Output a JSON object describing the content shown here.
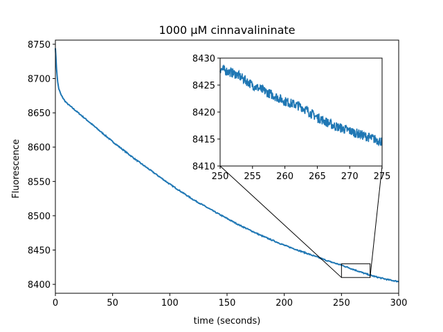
{
  "chart_data": {
    "type": "line",
    "title": "1000 μM cinnavalininate",
    "xlabel": "time (seconds)",
    "ylabel": "Fluorescence",
    "xlim": [
      0,
      300
    ],
    "ylim": [
      8387,
      8756
    ],
    "xticks": [
      0,
      50,
      100,
      150,
      200,
      250,
      300
    ],
    "yticks": [
      8400,
      8450,
      8500,
      8550,
      8600,
      8650,
      8700,
      8750
    ],
    "grid": false,
    "color": "#1f77b4",
    "series": [
      {
        "x": [
          0,
          1,
          2,
          3,
          5,
          8,
          10,
          15,
          20,
          30,
          40,
          50,
          60,
          70,
          80,
          90,
          100,
          120,
          140,
          160,
          180,
          200,
          220,
          240,
          250,
          260,
          270,
          280,
          290,
          300
        ],
        "y": [
          8745,
          8715,
          8695,
          8685,
          8676,
          8668,
          8664,
          8657,
          8650,
          8636,
          8622,
          8608,
          8595,
          8582,
          8570,
          8558,
          8546,
          8524,
          8505,
          8487,
          8471,
          8457,
          8445,
          8433,
          8428,
          8422,
          8416,
          8411,
          8407,
          8404
        ]
      }
    ],
    "inset": {
      "xlim": [
        250,
        275
      ],
      "ylim": [
        8410,
        8430
      ],
      "xticks": [
        250,
        255,
        260,
        265,
        270,
        275
      ],
      "yticks": [
        8410,
        8415,
        8420,
        8425,
        8430
      ],
      "series": [
        {
          "x": [
            250,
            252.5,
            255,
            257.5,
            260,
            262.5,
            265,
            267.5,
            270,
            272.5,
            275
          ],
          "y": [
            8428,
            8427,
            8425,
            8423.5,
            8422,
            8421,
            8419,
            8417.5,
            8416.5,
            8415.5,
            8414.5
          ]
        }
      ]
    }
  }
}
